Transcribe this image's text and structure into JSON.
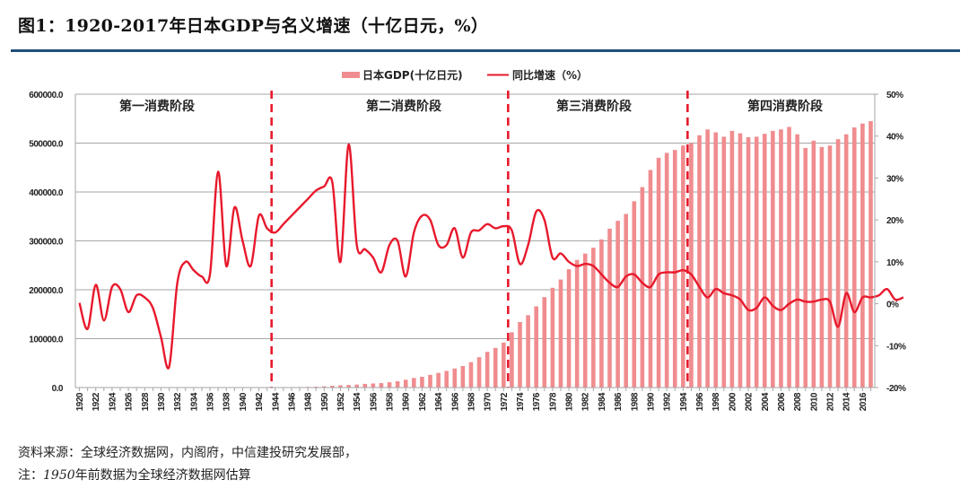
{
  "header": {
    "title": "图1：1920-2017年日本GDP与名义增速（十亿日元，%）"
  },
  "footer": {
    "source": "资料来源：全球经济数据网，内阁府，中信建投研究发展部，",
    "note_prefix": "注：",
    "note_year": "1950",
    "note_suffix": "年前数据为全球经济数据网估算"
  },
  "colors": {
    "bar": "#f08c8f",
    "line": "#e8192c",
    "divider": "#e8192c",
    "grid": "#a6a6a6",
    "rule": "#1f4e79"
  },
  "chart_data": {
    "type": "bar+line",
    "title": "1920-2017年日本GDP与名义增速（十亿日元，%）",
    "legend": {
      "placement": "top-center",
      "entries": [
        "日本GDP(十亿日元)",
        "同比增速（%）"
      ]
    },
    "left_axis": {
      "ylim": [
        0,
        600000
      ],
      "ticks": [
        "0.0",
        "100000.0",
        "200000.0",
        "300000.0",
        "400000.0",
        "500000.0",
        "600000.0"
      ]
    },
    "right_axis": {
      "ylim": [
        -20,
        50
      ],
      "ticks": [
        "-20%",
        "-10%",
        "0%",
        "10%",
        "20%",
        "30%",
        "40%",
        "50%"
      ]
    },
    "grid": true,
    "x_tick_labels": [
      "1920",
      "1922",
      "1924",
      "1926",
      "1928",
      "1930",
      "1932",
      "1934",
      "1936",
      "1938",
      "1940",
      "1942",
      "1944",
      "1946",
      "1948",
      "1950",
      "1952",
      "1954",
      "1956",
      "1958",
      "1960",
      "1962",
      "1964",
      "1966",
      "1968",
      "1970",
      "1972",
      "1974",
      "1976",
      "1978",
      "1980",
      "1982",
      "1984",
      "1986",
      "1988",
      "1990",
      "1992",
      "1994",
      "1996",
      "1998",
      "2000",
      "2002",
      "2004",
      "2006",
      "2008",
      "2010",
      "2012",
      "2014",
      "2016"
    ],
    "phase_dividers": [
      1944,
      1973,
      1995
    ],
    "phase_labels": [
      "第一消费阶段",
      "第二消费阶段",
      "第三消费阶段",
      "第四消费阶段"
    ],
    "years_start": 1920,
    "series": [
      {
        "name": "日本GDP(十亿日元)",
        "type": "bar",
        "axis": "left",
        "start_year": 1944,
        "values": [
          500,
          700,
          900,
          1100,
          1400,
          1800,
          2500,
          3600,
          4500,
          5300,
          6000,
          7500,
          8300,
          9100,
          10800,
          12800,
          16000,
          19500,
          22000,
          26000,
          30000,
          34000,
          39000,
          44000,
          52000,
          62000,
          73000,
          81000,
          92000,
          113000,
          134000,
          148000,
          166000,
          185000,
          204000,
          221000,
          242000,
          261000,
          274000,
          286000,
          303000,
          325000,
          341000,
          355000,
          381000,
          410000,
          445000,
          470000,
          480000,
          486000,
          495000,
          500000,
          516000,
          528000,
          522000,
          513000,
          525000,
          520000,
          512000,
          513000,
          519000,
          525000,
          528000,
          533000,
          518000,
          490000,
          505000,
          492000,
          495000,
          508000,
          518000,
          532000,
          540000,
          545000
        ]
      },
      {
        "name": "同比增速（%）",
        "type": "line",
        "axis": "right",
        "start_year": 1920,
        "values": [
          0.2,
          -6,
          4.5,
          -4,
          4,
          3.5,
          -2,
          2,
          1.5,
          -1,
          -8,
          -15,
          5,
          10,
          8,
          6.5,
          7,
          31.5,
          9,
          23,
          15,
          9,
          21,
          18,
          17,
          19,
          21,
          23,
          25,
          27,
          28,
          29,
          10,
          38,
          14,
          13,
          11,
          7.5,
          14,
          15,
          6.5,
          17,
          21,
          20,
          14,
          14,
          18,
          11,
          17,
          17.5,
          19,
          18,
          18.5,
          17.5,
          9.5,
          14,
          22,
          20,
          11,
          12,
          10,
          9,
          9.5,
          9,
          7,
          5,
          4,
          6.5,
          7,
          5,
          4,
          7,
          7.5,
          7.5,
          8,
          7,
          4,
          1.5,
          3.5,
          2.5,
          2,
          1,
          -1.5,
          -1,
          1.5,
          -0.5,
          -1.5,
          0,
          1,
          0.5,
          0.5,
          1,
          0.5,
          -5.5,
          2.5,
          -2,
          1.5,
          1.5,
          2,
          3.5,
          1,
          1.5
        ]
      }
    ]
  }
}
